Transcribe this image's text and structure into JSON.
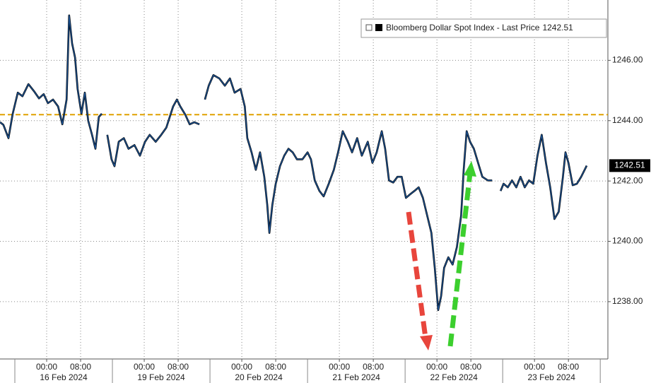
{
  "chart_data": {
    "type": "line",
    "series": [
      {
        "name": "Bloomberg Dollar Spot Index - Last Price",
        "color": "#1c5497",
        "x": [
          -11,
          -10.2,
          -9,
          -8,
          -6.8,
          -5.7,
          -4.3,
          -3,
          -1.8,
          -0.7,
          0.3,
          1.5,
          2.7,
          3.7,
          4.7,
          5.3,
          6,
          6.7,
          7.3,
          8.2,
          9,
          9.8,
          10.7,
          11.5,
          12.3,
          13,
          13.6,
          14.3,
          15.3,
          16,
          17,
          18.2,
          19.3,
          20.7,
          22,
          23.2,
          24.3,
          25.7,
          27,
          28.2,
          29,
          29.8,
          30.7,
          31.5,
          32.7,
          33.7,
          34.8,
          36,
          36.7,
          37.3,
          38.2,
          39.3,
          40.7,
          42,
          43.2,
          44.3,
          45.7,
          46.7,
          47.3,
          48.3,
          49.3,
          50.3,
          51.3,
          52,
          52.5,
          53.2,
          54,
          55,
          56,
          57,
          58,
          59,
          60.3,
          61.5,
          62.3,
          63.2,
          64.3,
          65.3,
          66.5,
          67.7,
          68.7,
          69.8,
          71,
          72,
          73.2,
          74.3,
          75.7,
          76.8,
          77.8,
          79,
          79.8,
          80.7,
          81.7,
          82.7,
          83.7,
          84.7,
          85.7,
          86.7,
          87.7,
          88.7,
          89.7,
          90.7,
          91.5,
          92.3,
          93,
          93.7,
          94.7,
          95.7,
          96.7,
          97.7,
          98.3,
          99,
          99.8,
          100.7,
          101.7,
          102.7,
          104,
          105,
          106,
          107,
          107.7,
          108.7,
          109.7,
          110.7,
          111.7,
          112.7,
          113.7,
          114.7,
          115.7,
          116.7,
          117.7,
          118.7,
          119.7,
          120.7,
          121.7,
          122.3,
          123,
          124,
          125,
          126,
          127,
          127.3
        ],
        "values": [
          1243.95,
          1243.86,
          1243.42,
          1244.23,
          1244.93,
          1244.81,
          1245.21,
          1244.98,
          1244.74,
          1244.88,
          1244.58,
          1244.7,
          1244.47,
          1243.88,
          1244.7,
          1247.49,
          1246.56,
          1246.09,
          1245.05,
          1244.23,
          1244.93,
          1244.0,
          1243.53,
          1243.07,
          1244.12,
          1244.23,
          null,
          1243.53,
          1242.72,
          1242.49,
          1243.3,
          1243.42,
          1243.07,
          1243.19,
          1242.84,
          1243.3,
          1243.53,
          1243.3,
          1243.53,
          1243.77,
          1244.12,
          1244.47,
          1244.7,
          1244.47,
          1244.19,
          1243.88,
          1243.95,
          1243.88,
          null,
          1244.7,
          1245.16,
          1245.51,
          1245.4,
          1245.16,
          1245.4,
          1244.93,
          1245.05,
          1244.47,
          1243.42,
          1242.95,
          1242.37,
          1242.95,
          1242.14,
          1241.21,
          1240.28,
          1241.21,
          1241.91,
          1242.49,
          1242.84,
          1243.07,
          1242.95,
          1242.72,
          1242.72,
          1242.95,
          1242.72,
          1242.02,
          1241.67,
          1241.49,
          1241.91,
          1242.37,
          1242.95,
          1243.65,
          1243.3,
          1242.95,
          1243.42,
          1242.84,
          1243.3,
          1242.6,
          1242.95,
          1243.65,
          1243.07,
          1242.02,
          1241.95,
          1242.14,
          1242.14,
          1241.44,
          1241.56,
          1241.67,
          1241.79,
          1241.44,
          1240.86,
          1240.28,
          1239.12,
          1237.72,
          1238.19,
          1239.12,
          1239.47,
          1239.23,
          1239.81,
          1240.86,
          1242.37,
          1243.65,
          1243.3,
          1243.07,
          1242.6,
          1242.14,
          1242.02,
          1242.02,
          null,
          1241.67,
          1241.91,
          1241.79,
          1242.02,
          1241.79,
          1242.14,
          1241.79,
          1242.02,
          1241.91,
          1242.84,
          1243.53,
          1242.6,
          1241.79,
          1240.74,
          1240.98,
          1242.14,
          1242.95,
          1242.6,
          1241.86,
          1241.91,
          1242.14,
          1242.42,
          1242.51
        ]
      }
    ],
    "last_value": 1242.51,
    "reference_line": {
      "value": 1244.2,
      "color": "#e0a100"
    },
    "xlim": [
      -11,
      132.3
    ],
    "ylim": [
      1236.1,
      1248
    ],
    "xticks": [
      {
        "value": 0,
        "label": "00:00"
      },
      {
        "value": 8,
        "label": "08:00"
      },
      {
        "value": 23,
        "label": "00:00"
      },
      {
        "value": 31,
        "label": "08:00"
      },
      {
        "value": 46,
        "label": "00:00"
      },
      {
        "value": 54,
        "label": "08:00"
      },
      {
        "value": 69,
        "label": "00:00"
      },
      {
        "value": 77,
        "label": "08:00"
      },
      {
        "value": 92,
        "label": "00:00"
      },
      {
        "value": 100,
        "label": "08:00"
      },
      {
        "value": 115,
        "label": "00:00"
      },
      {
        "value": 123,
        "label": "08:00"
      }
    ],
    "date_labels": [
      {
        "value": 4,
        "label": "16 Feb 2024"
      },
      {
        "value": 27,
        "label": "19 Feb 2024"
      },
      {
        "value": 50,
        "label": "20 Feb 2024"
      },
      {
        "value": 73,
        "label": "21 Feb 2024"
      },
      {
        "value": 96,
        "label": "22 Feb 2024"
      },
      {
        "value": 119,
        "label": "23 Feb 2024"
      }
    ],
    "yticks": [
      {
        "value": 1238,
        "label": "1238.00"
      },
      {
        "value": 1240,
        "label": "1240.00"
      },
      {
        "value": 1242,
        "label": "1242.00"
      },
      {
        "value": 1244,
        "label": "1244.00"
      },
      {
        "value": 1246,
        "label": "1246.00"
      }
    ],
    "grid": true
  }
}
